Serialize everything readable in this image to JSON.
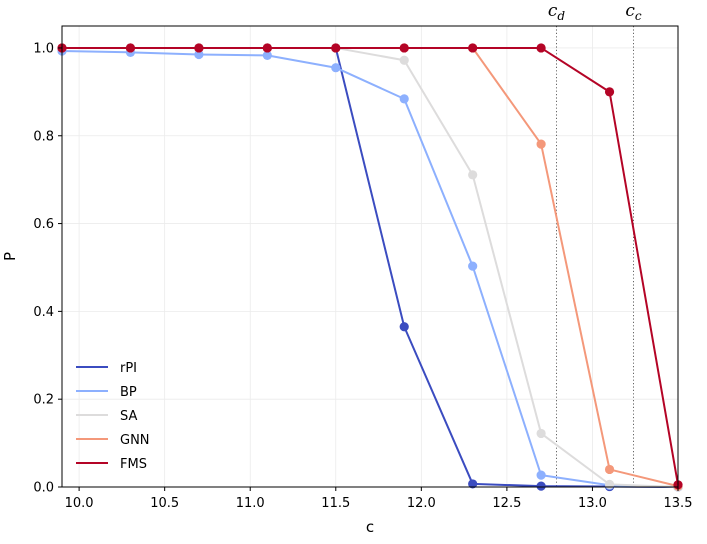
{
  "chart_data": {
    "type": "line",
    "xlabel": "c",
    "ylabel": "P",
    "xlim": [
      9.9,
      13.5
    ],
    "ylim": [
      0.0,
      1.05
    ],
    "xticks": [
      "10.0",
      "10.5",
      "11.0",
      "11.5",
      "12.0",
      "12.5",
      "13.0",
      "13.5"
    ],
    "yticks": [
      "0.0",
      "0.2",
      "0.4",
      "0.6",
      "0.8",
      "1.0"
    ],
    "grid": true,
    "legend_position": "lower-left",
    "x": [
      9.9,
      10.3,
      10.7,
      11.1,
      11.5,
      11.9,
      12.3,
      12.7,
      13.1,
      13.5
    ],
    "series": [
      {
        "name": "rPI",
        "color": "#3b4cc0",
        "values": [
          1.0,
          1.0,
          1.0,
          1.0,
          1.0,
          0.365,
          0.007,
          0.002,
          0.001,
          0.0
        ]
      },
      {
        "name": "BP",
        "color": "#8db0fe",
        "values": [
          0.993,
          0.99,
          0.985,
          0.983,
          0.955,
          0.884,
          0.503,
          0.027,
          0.004,
          0.0
        ]
      },
      {
        "name": "SA",
        "color": "#dddcdc",
        "values": [
          1.0,
          1.0,
          1.0,
          1.0,
          1.0,
          0.972,
          0.711,
          0.122,
          0.006,
          0.0
        ]
      },
      {
        "name": "GNN",
        "color": "#f4987a",
        "values": [
          1.0,
          1.0,
          1.0,
          1.0,
          1.0,
          1.0,
          1.0,
          0.781,
          0.04,
          0.002
        ]
      },
      {
        "name": "FMS",
        "color": "#b40426",
        "values": [
          1.0,
          1.0,
          1.0,
          1.0,
          1.0,
          1.0,
          1.0,
          1.0,
          0.9,
          0.005
        ]
      }
    ],
    "vlines": [
      {
        "label": "c",
        "sub": "d",
        "x": 12.79
      },
      {
        "label": "c",
        "sub": "c",
        "x": 13.24
      }
    ]
  }
}
